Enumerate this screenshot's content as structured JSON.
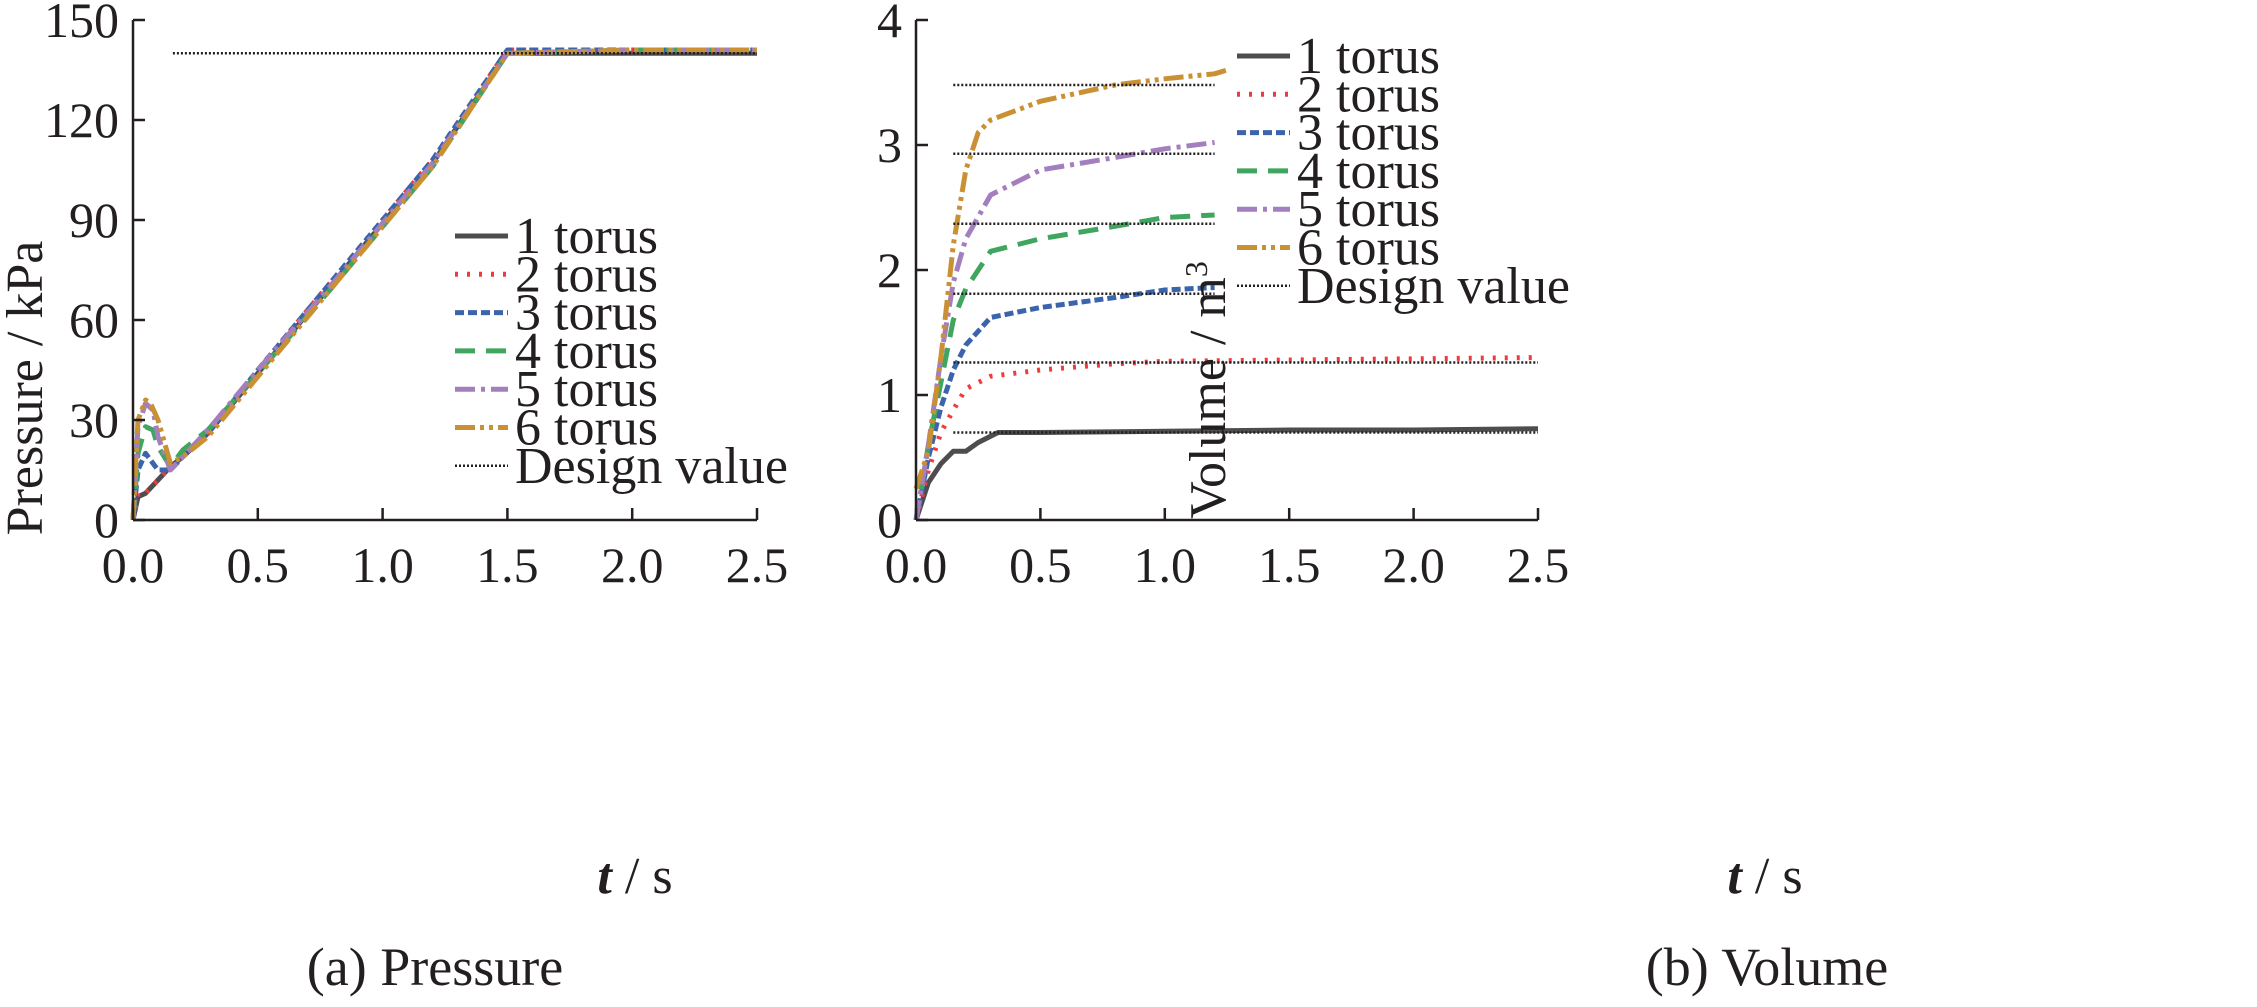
{
  "charts": [
    {
      "caption": "(a) Pressure",
      "ylabel": "Pressure / kPa",
      "xlabel_var": "t",
      "xlabel_unit": " / s",
      "xticks": [
        "0.0",
        "0.5",
        "1.0",
        "1.5",
        "2.0",
        "2.5"
      ],
      "yticks": [
        "0",
        "30",
        "60",
        "90",
        "120",
        "150"
      ]
    },
    {
      "caption": "(b) Volume",
      "ylabel": "Volume / m",
      "ylabel_sup": "3",
      "xlabel_var": "t",
      "xlabel_unit": " / s",
      "xticks": [
        "0.0",
        "0.5",
        "1.0",
        "1.5",
        "2.0",
        "2.5"
      ],
      "yticks": [
        "0",
        "1",
        "2",
        "3",
        "4"
      ]
    }
  ],
  "legend": [
    "1 torus",
    "2 torus",
    "3 torus",
    "4 torus",
    "5 torus",
    "6 torus",
    "Design value"
  ],
  "colors": {
    "1 torus": "#4d4d4f",
    "2 torus": "#ee3b3e",
    "3 torus": "#3b64ad",
    "4 torus": "#3fa55f",
    "5 torus": "#a47fbf",
    "6 torus": "#c99134",
    "Design value": "#231f20"
  },
  "chart_data": [
    {
      "type": "line",
      "title": "(a) Pressure",
      "xlabel": "t / s",
      "ylabel": "Pressure / kPa",
      "xlim": [
        0,
        2.5
      ],
      "ylim": [
        0,
        150
      ],
      "grid": false,
      "legend_position": "right",
      "series": [
        {
          "name": "1 torus",
          "x": [
            0,
            0.02,
            0.05,
            0.1,
            0.15,
            0.2,
            0.3,
            0.5,
            0.8,
            1.0,
            1.2,
            1.5,
            2.0,
            2.5
          ],
          "y": [
            0,
            7,
            8,
            12,
            16,
            19,
            26,
            44,
            71,
            89,
            107,
            140,
            140,
            140
          ]
        },
        {
          "name": "2 torus",
          "x": [
            0,
            0.02,
            0.05,
            0.1,
            0.15,
            0.2,
            0.3,
            0.5,
            0.8,
            1.0,
            1.2,
            1.5,
            2.0,
            2.5
          ],
          "y": [
            0,
            8,
            8,
            12,
            16,
            19,
            26,
            45,
            72,
            90,
            108,
            141,
            141,
            141
          ]
        },
        {
          "name": "3 torus",
          "x": [
            0,
            0.02,
            0.05,
            0.1,
            0.15,
            0.2,
            0.3,
            0.5,
            0.8,
            1.0,
            1.2,
            1.5,
            2.0,
            2.5
          ],
          "y": [
            0,
            15,
            20,
            15,
            15,
            19,
            26,
            45,
            72,
            90,
            108,
            141,
            141,
            141
          ]
        },
        {
          "name": "4 torus",
          "x": [
            0,
            0.02,
            0.05,
            0.08,
            0.1,
            0.15,
            0.2,
            0.3,
            0.5,
            0.8,
            1.0,
            1.2,
            1.5,
            2.0,
            2.5
          ],
          "y": [
            0,
            20,
            28,
            27,
            22,
            16,
            21,
            27,
            44,
            70,
            88,
            106,
            140,
            141,
            141
          ]
        },
        {
          "name": "5 torus",
          "x": [
            0,
            0.02,
            0.05,
            0.08,
            0.1,
            0.15,
            0.2,
            0.3,
            0.5,
            0.8,
            1.0,
            1.2,
            1.5,
            2.0,
            2.5
          ],
          "y": [
            0,
            28,
            35,
            33,
            25,
            15,
            19,
            27,
            45,
            71,
            89,
            107,
            140,
            141,
            141
          ]
        },
        {
          "name": "6 torus",
          "x": [
            0,
            0.02,
            0.05,
            0.07,
            0.1,
            0.15,
            0.2,
            0.3,
            0.5,
            0.8,
            1.0,
            1.2,
            1.5,
            2.0,
            2.5
          ],
          "y": [
            0,
            30,
            36,
            35,
            30,
            17,
            19,
            25,
            43,
            70,
            88,
            106,
            140,
            141,
            141
          ]
        },
        {
          "name": "Design value",
          "x": [
            0.16,
            2.5
          ],
          "y": [
            140,
            140
          ]
        }
      ]
    },
    {
      "type": "line",
      "title": "(b) Volume",
      "xlabel": "t / s",
      "ylabel": "Volume / m3",
      "xlim": [
        0,
        2.5
      ],
      "ylim": [
        0,
        4
      ],
      "grid": false,
      "legend_position": "top-right",
      "series": [
        {
          "name": "1 torus",
          "x": [
            0,
            0.05,
            0.1,
            0.15,
            0.2,
            0.25,
            0.33,
            0.5,
            1.0,
            1.5,
            2.0,
            2.5
          ],
          "y": [
            0,
            0.3,
            0.45,
            0.55,
            0.55,
            0.62,
            0.7,
            0.7,
            0.71,
            0.72,
            0.72,
            0.73
          ]
        },
        {
          "name": "2 torus",
          "x": [
            0,
            0.05,
            0.1,
            0.15,
            0.2,
            0.3,
            0.5,
            0.8,
            1.0,
            1.5,
            2.0,
            2.5
          ],
          "y": [
            0,
            0.4,
            0.7,
            0.88,
            1.05,
            1.15,
            1.2,
            1.25,
            1.27,
            1.28,
            1.29,
            1.3
          ]
        },
        {
          "name": "3 torus",
          "x": [
            0,
            0.05,
            0.1,
            0.15,
            0.2,
            0.3,
            0.5,
            0.8,
            1.0,
            1.2
          ],
          "y": [
            0,
            0.5,
            0.9,
            1.2,
            1.4,
            1.62,
            1.7,
            1.78,
            1.84,
            1.86
          ]
        },
        {
          "name": "4 torus",
          "x": [
            0,
            0.05,
            0.1,
            0.15,
            0.2,
            0.3,
            0.5,
            0.8,
            1.0,
            1.2
          ],
          "y": [
            0,
            0.6,
            1.1,
            1.6,
            1.85,
            2.15,
            2.25,
            2.35,
            2.42,
            2.44
          ]
        },
        {
          "name": "5 torus",
          "x": [
            0,
            0.05,
            0.1,
            0.15,
            0.2,
            0.3,
            0.5,
            0.8,
            1.0,
            1.2
          ],
          "y": [
            0,
            0.6,
            1.3,
            1.9,
            2.25,
            2.6,
            2.8,
            2.9,
            2.97,
            3.02
          ]
        },
        {
          "name": "6 torus",
          "x": [
            0,
            0.05,
            0.1,
            0.15,
            0.2,
            0.25,
            0.3,
            0.5,
            0.8,
            1.0,
            1.2,
            1.25
          ],
          "y": [
            0.25,
            0.55,
            1.3,
            2.2,
            2.8,
            3.1,
            3.2,
            3.35,
            3.48,
            3.53,
            3.57,
            3.6
          ]
        },
        {
          "name": "Design value",
          "x": [
            0.15,
            2.5
          ],
          "y": [
            0.7,
            0.7
          ]
        },
        {
          "name": "Design value",
          "x": [
            0.15,
            2.5
          ],
          "y": [
            1.26,
            1.26
          ]
        },
        {
          "name": "Design value",
          "x": [
            0.15,
            1.2
          ],
          "y": [
            1.81,
            1.81
          ]
        },
        {
          "name": "Design value",
          "x": [
            0.15,
            1.2
          ],
          "y": [
            2.37,
            2.37
          ]
        },
        {
          "name": "Design value",
          "x": [
            0.15,
            1.2
          ],
          "y": [
            2.93,
            2.93
          ]
        },
        {
          "name": "Design value",
          "x": [
            0.15,
            1.2
          ],
          "y": [
            3.48,
            3.48
          ]
        }
      ]
    }
  ]
}
